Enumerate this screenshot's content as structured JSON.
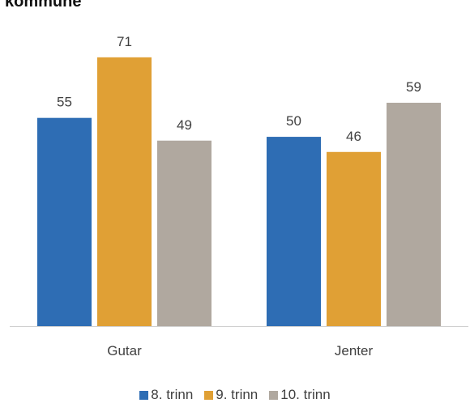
{
  "title": "kommune",
  "chart_data": {
    "type": "bar",
    "categories": [
      "Gutar",
      "Jenter"
    ],
    "series": [
      {
        "name": "8. trinn",
        "values": [
          55,
          50
        ],
        "color": "#2e6db4"
      },
      {
        "name": "9. trinn",
        "values": [
          71,
          46
        ],
        "color": "#e0a035"
      },
      {
        "name": "10. trinn",
        "values": [
          49,
          59
        ],
        "color": "#b0a89f"
      }
    ],
    "ylim": [
      0,
      84
    ],
    "grid": false,
    "legend": "bottom",
    "data_labels": true
  }
}
